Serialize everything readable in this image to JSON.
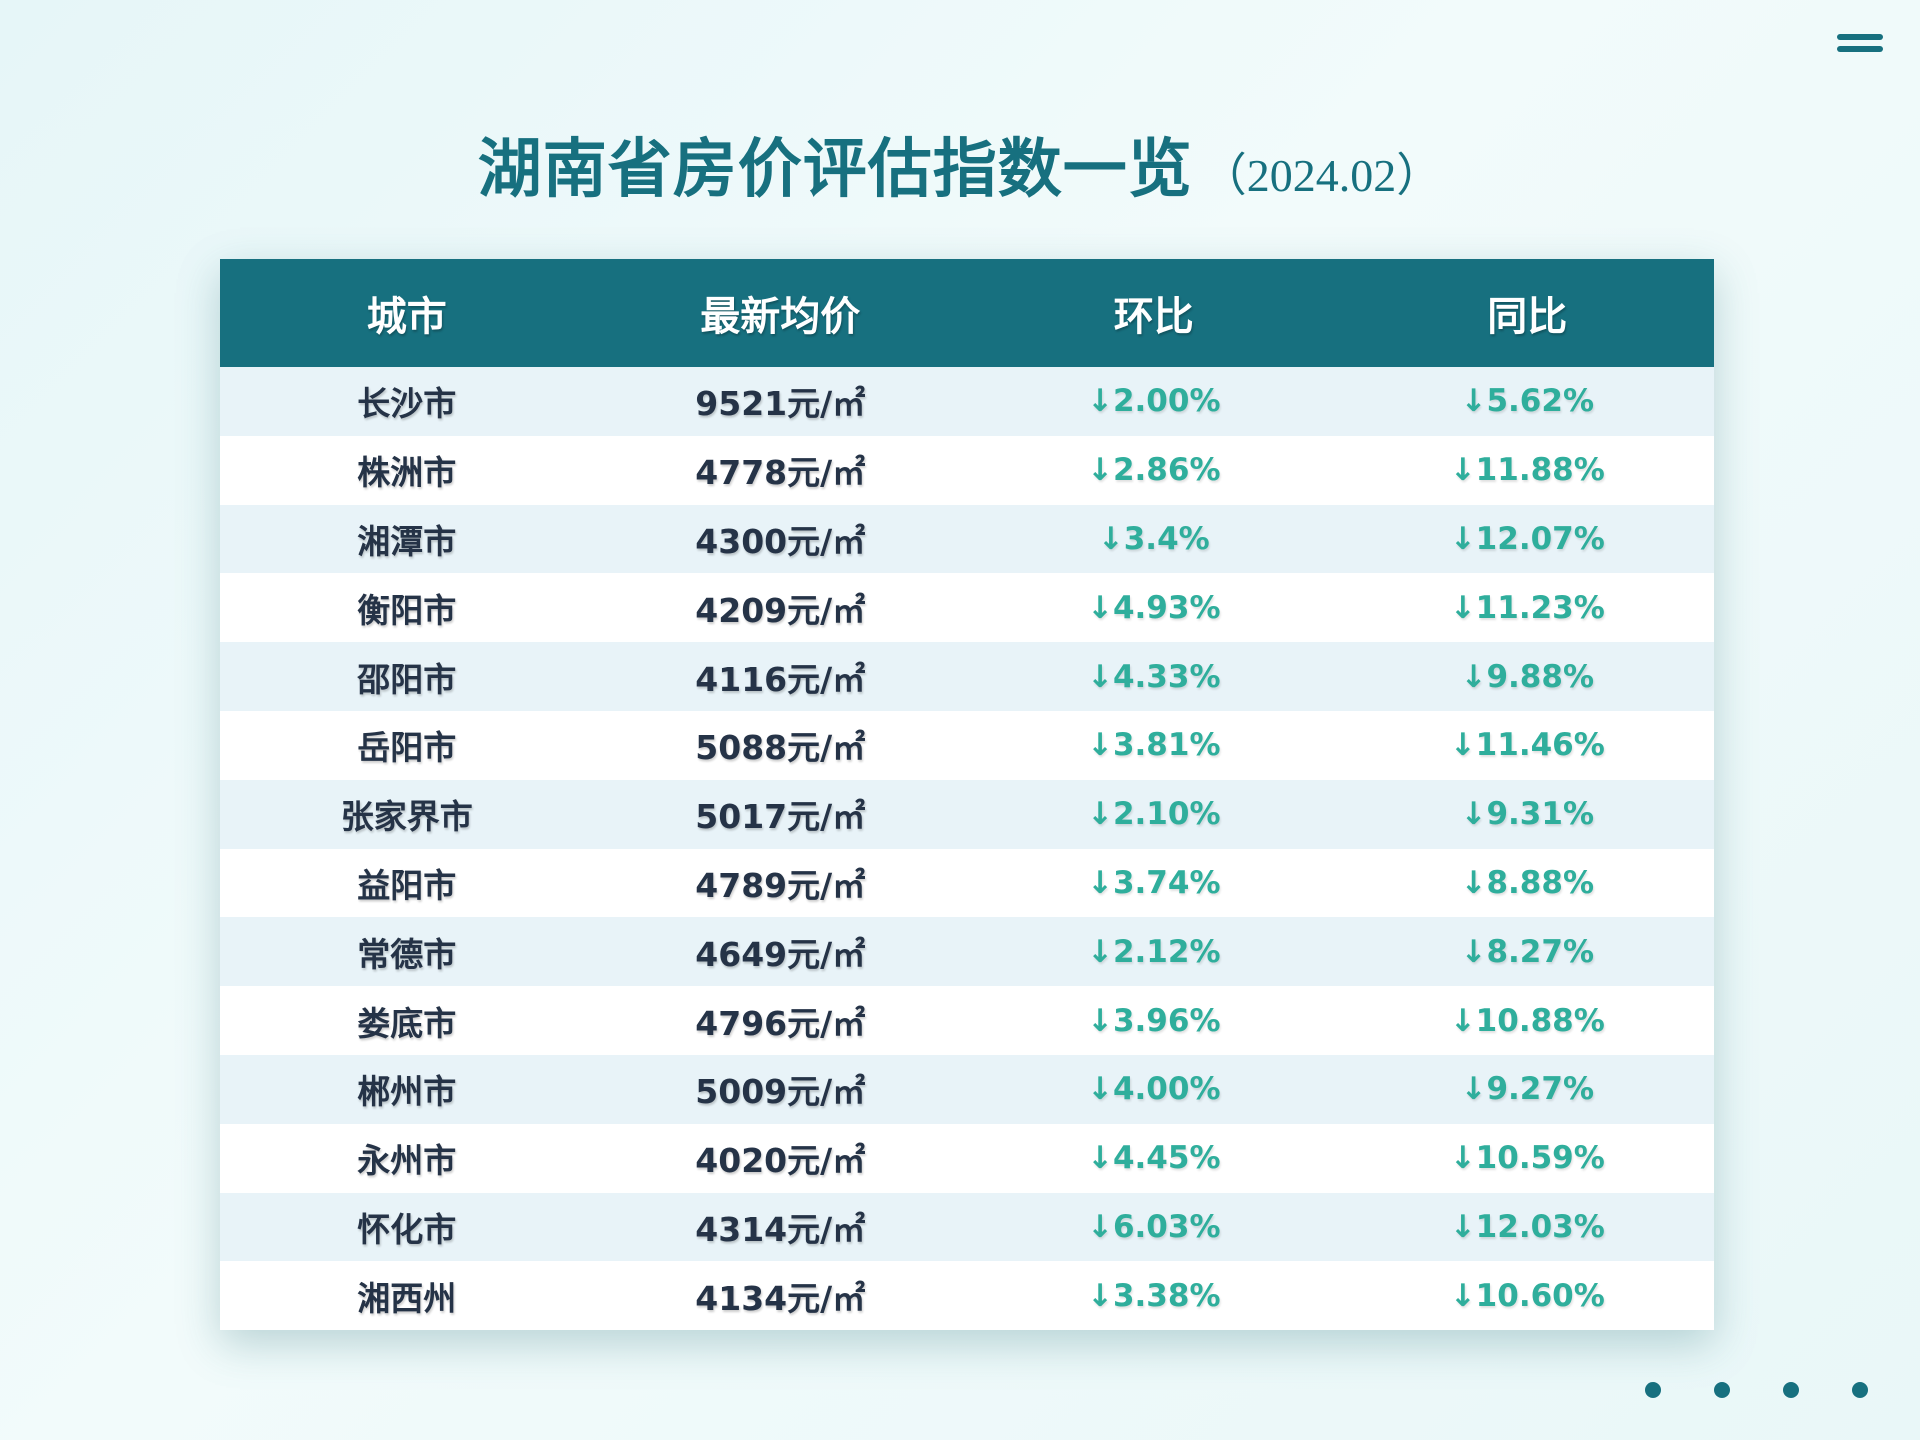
{
  "title": {
    "main": "湖南省房价评估指数一览",
    "date": "（2024.02）"
  },
  "table": {
    "headers": [
      "城市",
      "最新均价",
      "环比",
      "同比"
    ],
    "rows": [
      {
        "city": "长沙市",
        "price": "9521元/㎡",
        "mom": "↓2.00%",
        "yoy": "↓5.62%"
      },
      {
        "city": "株洲市",
        "price": "4778元/㎡",
        "mom": "↓2.86%",
        "yoy": "↓11.88%"
      },
      {
        "city": "湘潭市",
        "price": "4300元/㎡",
        "mom": "↓3.4%",
        "yoy": "↓12.07%"
      },
      {
        "city": "衡阳市",
        "price": "4209元/㎡",
        "mom": "↓4.93%",
        "yoy": "↓11.23%"
      },
      {
        "city": "邵阳市",
        "price": "4116元/㎡",
        "mom": "↓4.33%",
        "yoy": "↓9.88%"
      },
      {
        "city": "岳阳市",
        "price": "5088元/㎡",
        "mom": "↓3.81%",
        "yoy": "↓11.46%"
      },
      {
        "city": "张家界市",
        "price": "5017元/㎡",
        "mom": "↓2.10%",
        "yoy": "↓9.31%"
      },
      {
        "city": "益阳市",
        "price": "4789元/㎡",
        "mom": "↓3.74%",
        "yoy": "↓8.88%"
      },
      {
        "city": "常德市",
        "price": "4649元/㎡",
        "mom": "↓2.12%",
        "yoy": "↓8.27%"
      },
      {
        "city": "娄底市",
        "price": "4796元/㎡",
        "mom": "↓3.96%",
        "yoy": "↓10.88%"
      },
      {
        "city": "郴州市",
        "price": "5009元/㎡",
        "mom": "↓4.00%",
        "yoy": "↓9.27%"
      },
      {
        "city": "永州市",
        "price": "4020元/㎡",
        "mom": "↓4.45%",
        "yoy": "↓10.59%"
      },
      {
        "city": "怀化市",
        "price": "4314元/㎡",
        "mom": "↓6.03%",
        "yoy": "↓12.03%"
      },
      {
        "city": "湘西州",
        "price": "4134元/㎡",
        "mom": "↓3.38%",
        "yoy": "↓10.60%"
      }
    ]
  },
  "colors": {
    "primary": "#17707f",
    "accent": "#2fae9c",
    "text": "#253347",
    "row_alt": "#e8f3f8"
  },
  "icons": {
    "menu": "menu-icon",
    "pagination": "pagination-dots"
  }
}
